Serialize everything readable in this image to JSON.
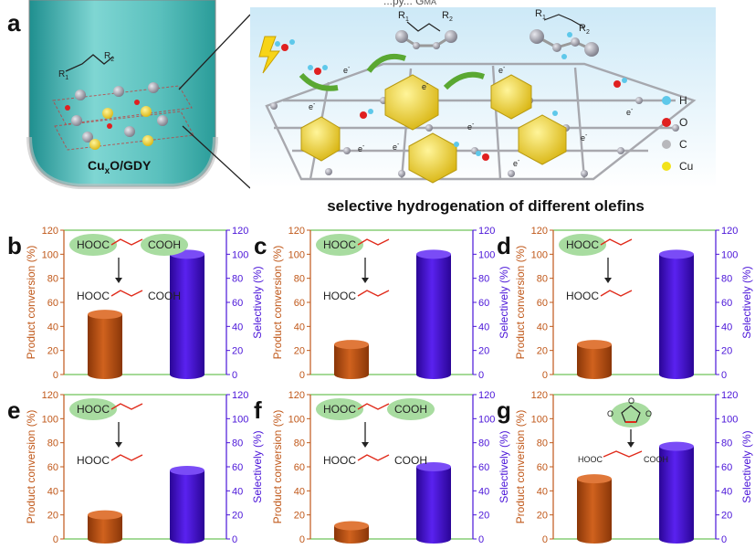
{
  "panel_a": {
    "letter": "a",
    "reactor_label_pre": "Cu",
    "reactor_label_sub": "x",
    "reactor_label_post": "O/GDY",
    "reactor_r1": "R",
    "reactor_r1_sub": "1",
    "reactor_r2": "R",
    "reactor_r2_sub": "2",
    "top_text": "...py... G",
    "top_text_sub": "MA",
    "olefin_r1": "R",
    "olefin_r1_sub": "1",
    "olefin_r2": "R",
    "olefin_r2_sub": "2",
    "alkane_r1": "R",
    "alkane_r1_sub": "1",
    "alkane_r2": "R",
    "alkane_r2_sub": "2",
    "electron_label": "e",
    "electron_sup": "-",
    "caption": "selective hydrogenation of different olefins",
    "legend": [
      {
        "label": "H",
        "color": "#5ec8ea"
      },
      {
        "label": "O",
        "color": "#e02020"
      },
      {
        "label": "C",
        "color": "#b8b8bc"
      },
      {
        "label": "Cu",
        "color": "#f2e21a"
      }
    ]
  },
  "colors": {
    "conversion": "#c0581a",
    "selectivity": "#4a14d8",
    "frame": "#6fc35a",
    "highlight": "#a8dca0",
    "bond_red": "#e02a1a"
  },
  "chart_data": [
    {
      "panel": "b",
      "type": "bar",
      "categories": [
        "Product conversion",
        "Selectively"
      ],
      "series": [
        {
          "name": "Product conversion (%)",
          "values": [
            50,
            null
          ]
        },
        {
          "name": "Selectively (%)",
          "values": [
            null,
            100
          ]
        }
      ],
      "ylabel_left": "Product conversion (%)",
      "ylabel_right": "Selectively (%)",
      "ylim_left": [
        0,
        120
      ],
      "ylim_right": [
        0,
        120
      ],
      "yticks": [
        "0",
        "20",
        "40",
        "60",
        "80",
        "100",
        "120"
      ],
      "structure": {
        "reactant_left": "HOOC",
        "reactant_right": "COOH",
        "product_left": "HOOC",
        "product_right": "COOH"
      }
    },
    {
      "panel": "c",
      "type": "bar",
      "categories": [
        "Product conversion",
        "Selectively"
      ],
      "series": [
        {
          "name": "Product conversion (%)",
          "values": [
            25,
            null
          ]
        },
        {
          "name": "Selectively (%)",
          "values": [
            null,
            100
          ]
        }
      ],
      "ylabel_left": "Product conversion (%)",
      "ylabel_right": "Selectively (%)",
      "ylim_left": [
        0,
        120
      ],
      "ylim_right": [
        0,
        120
      ],
      "yticks": [
        "0",
        "20",
        "40",
        "60",
        "80",
        "100",
        "120"
      ],
      "structure": {
        "reactant_left": "HOOC",
        "product_left": "HOOC"
      }
    },
    {
      "panel": "d",
      "type": "bar",
      "categories": [
        "Product conversion",
        "Selectively"
      ],
      "series": [
        {
          "name": "Product conversion (%)",
          "values": [
            25,
            null
          ]
        },
        {
          "name": "Selectively (%)",
          "values": [
            null,
            100
          ]
        }
      ],
      "ylabel_left": "Product conversion (%)",
      "ylabel_right": "Selectively (%)",
      "ylim_left": [
        0,
        120
      ],
      "ylim_right": [
        0,
        120
      ],
      "yticks": [
        "0",
        "20",
        "40",
        "60",
        "80",
        "100",
        "120"
      ],
      "structure": {
        "reactant_left": "HOOC",
        "product_left": "HOOC"
      }
    },
    {
      "panel": "e",
      "type": "bar",
      "categories": [
        "Product conversion",
        "Selectively"
      ],
      "series": [
        {
          "name": "Product conversion (%)",
          "values": [
            20,
            null
          ]
        },
        {
          "name": "Selectively (%)",
          "values": [
            null,
            57
          ]
        }
      ],
      "ylabel_left": "Product conversion (%)",
      "ylabel_right": "Selectively (%)",
      "ylim_left": [
        0,
        120
      ],
      "ylim_right": [
        0,
        120
      ],
      "yticks": [
        "0",
        "20",
        "40",
        "60",
        "80",
        "100",
        "120"
      ],
      "structure": {
        "reactant_left": "HOOC",
        "product_left": "HOOC"
      }
    },
    {
      "panel": "f",
      "type": "bar",
      "categories": [
        "Product conversion",
        "Selectively"
      ],
      "series": [
        {
          "name": "Product conversion (%)",
          "values": [
            11,
            null
          ]
        },
        {
          "name": "Selectively (%)",
          "values": [
            null,
            60
          ]
        }
      ],
      "ylabel_left": "Product conversion (%)",
      "ylabel_right": "Selectively (%)",
      "ylim_left": [
        0,
        120
      ],
      "ylim_right": [
        0,
        120
      ],
      "yticks": [
        "0",
        "20",
        "40",
        "60",
        "80",
        "100",
        "120"
      ],
      "structure": {
        "reactant_left": "HOOC",
        "reactant_right": "COOH",
        "product_left": "HOOC",
        "product_right": "COOH"
      }
    },
    {
      "panel": "g",
      "type": "bar",
      "categories": [
        "Product conversion",
        "Selectively"
      ],
      "series": [
        {
          "name": "Product conversion (%)",
          "values": [
            50,
            null
          ]
        },
        {
          "name": "Selectively (%)",
          "values": [
            null,
            77
          ]
        }
      ],
      "ylabel_left": "Product conversion (%)",
      "ylabel_right": "Selectively (%)",
      "ylim_left": [
        0,
        120
      ],
      "ylim_right": [
        0,
        120
      ],
      "yticks": [
        "0",
        "20",
        "40",
        "60",
        "80",
        "100",
        "120"
      ],
      "structure": {
        "ring_o_left": "O",
        "ring_o_center": "O",
        "ring_o_right": "O",
        "product_left": "HOOC",
        "product_right": "COOH"
      }
    }
  ]
}
